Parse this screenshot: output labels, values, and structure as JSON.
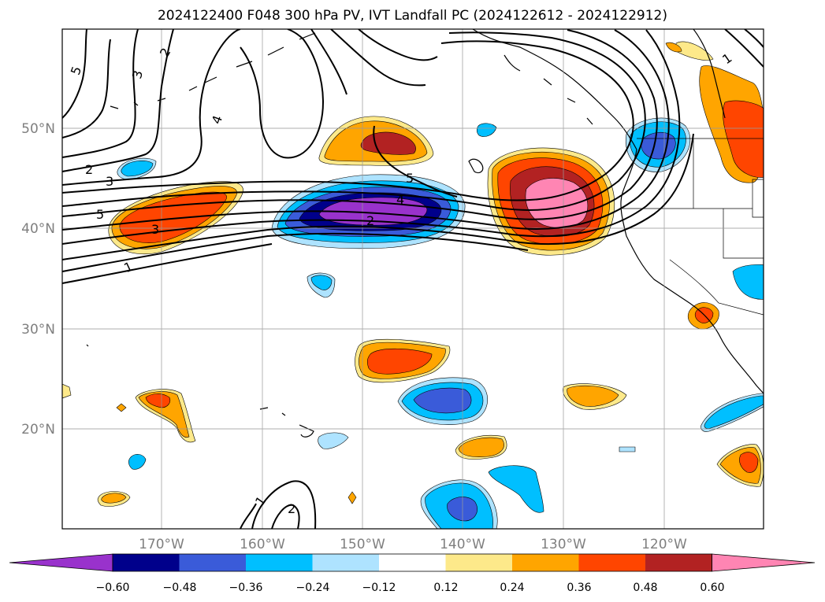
{
  "title": "2024122400 F048 300 hPa PV, IVT Landfall PC (2024122612 - 2024122912)",
  "map": {
    "lon_ticks": [
      "170°W",
      "160°W",
      "150°W",
      "140°W",
      "130°W",
      "120°W"
    ],
    "lat_ticks": [
      "50°N",
      "40°N",
      "30°N",
      "20°N"
    ],
    "contour_labels": [
      "5",
      "3",
      "2",
      "4",
      "2",
      "3",
      "5",
      "3",
      "1",
      "5",
      "4",
      "2",
      "1",
      "2",
      "1"
    ]
  },
  "colorbar": {
    "ticks": [
      "−0.60",
      "−0.48",
      "−0.36",
      "−0.24",
      "−0.12",
      "0.12",
      "0.24",
      "0.36",
      "0.48",
      "0.60"
    ],
    "colors": [
      "#9932cc",
      "#00008b",
      "#3a5bd9",
      "#00bfff",
      "#aee3ff",
      "#ffffff",
      "#fde98a",
      "#ffa500",
      "#ff4500",
      "#b22222",
      "#ff85b3"
    ]
  }
}
